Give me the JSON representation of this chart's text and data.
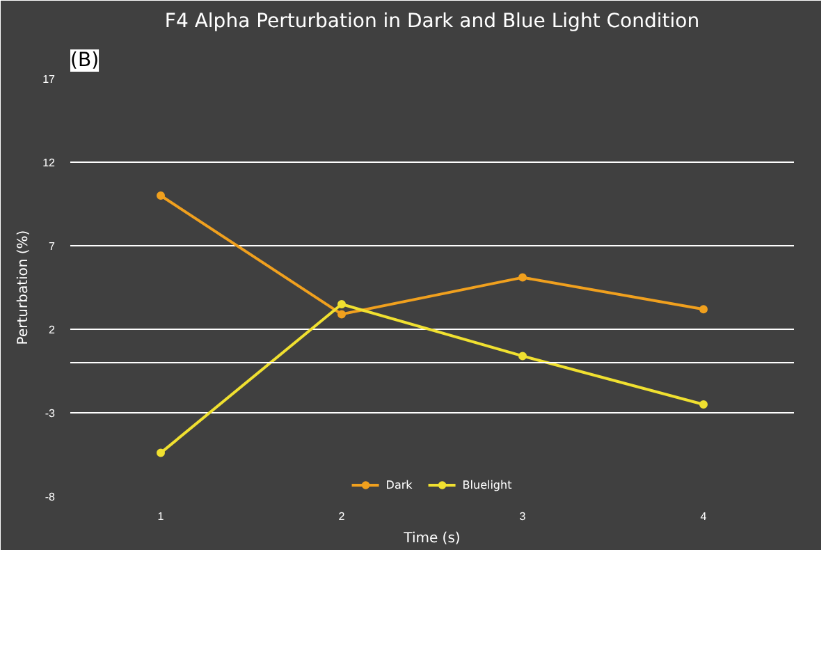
{
  "chart_data": {
    "type": "line",
    "title": "F4 Alpha Perturbation in Dark and Blue Light Condition",
    "xlabel": "Time (s)",
    "ylabel": "Perturbation (%)",
    "categories": [
      "1",
      "2",
      "3",
      "4"
    ],
    "series": [
      {
        "name": "Dark",
        "color": "#f0a01e",
        "values": [
          10.0,
          2.9,
          5.1,
          3.2
        ]
      },
      {
        "name": "Bluelight",
        "color": "#f0e030",
        "values": [
          -5.4,
          3.5,
          0.4,
          -2.5
        ]
      }
    ],
    "ylim": [
      -8,
      17
    ],
    "yticks": [
      -8,
      -3,
      2,
      7,
      12,
      17
    ],
    "ref_lines": [
      {
        "axis": "y",
        "value": 0,
        "color": "#ffffff"
      }
    ],
    "annotations": [
      "(B)"
    ],
    "grid": "y",
    "legend": "bottom",
    "marker": "circle",
    "line_style": "solid"
  }
}
